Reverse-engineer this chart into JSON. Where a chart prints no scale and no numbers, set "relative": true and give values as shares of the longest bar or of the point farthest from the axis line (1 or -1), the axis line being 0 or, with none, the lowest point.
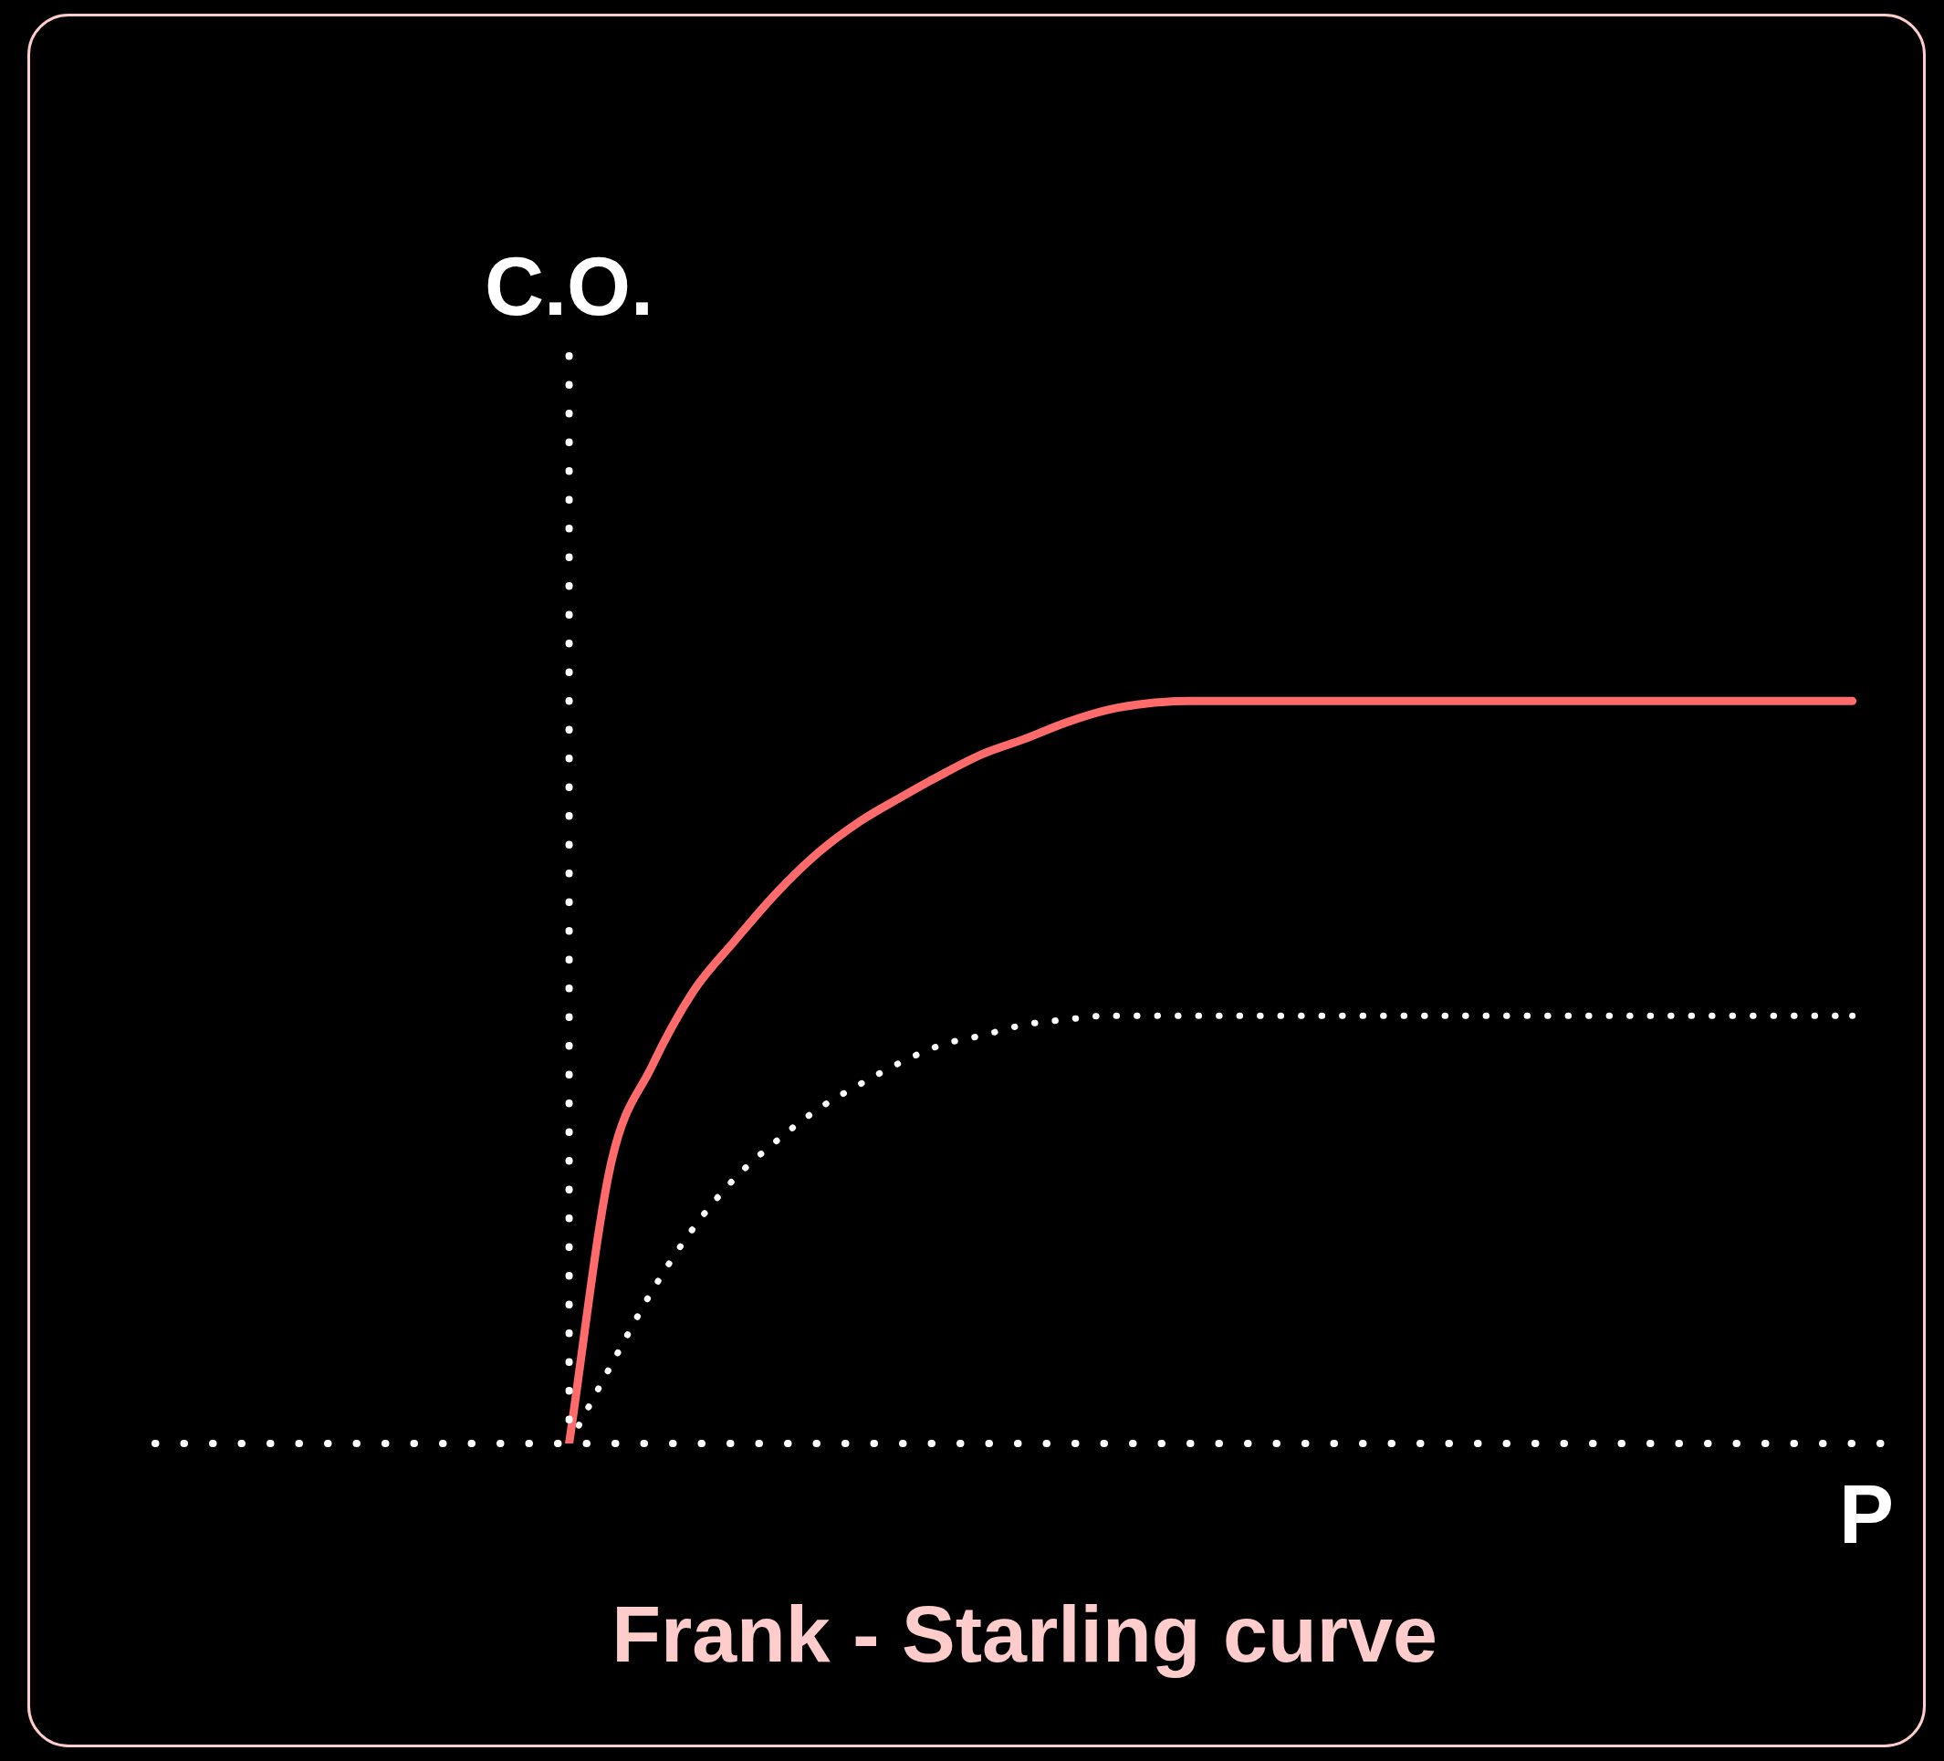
{
  "chart_data": {
    "type": "line",
    "title": "Frank - Starling curve",
    "xlabel": "P",
    "ylabel": "C.O.",
    "relative": true,
    "legend": false,
    "marker": "none",
    "categories": [
      null,
      null,
      null,
      null,
      null,
      null,
      null,
      null,
      null,
      null,
      null,
      null,
      null,
      null,
      null,
      null,
      null,
      null,
      null,
      null,
      null,
      null,
      null,
      null,
      null,
      null,
      null,
      null,
      null,
      null,
      null,
      null,
      null,
      null,
      null,
      null,
      null,
      null,
      null,
      null,
      null,
      null,
      null
    ],
    "series": [
      {
        "color": "#ff6b6b",
        "line_style": "solid",
        "values": [
          null,
          null,
          null,
          null,
          null,
          null,
          null,
          null,
          null,
          null,
          0,
          0.374,
          0.508,
          0.609,
          0.677,
          0.741,
          0.795,
          0.837,
          0.87,
          0.901,
          0.929,
          0.949,
          0.971,
          0.988,
          0.997,
          1,
          1,
          1,
          1,
          1,
          1,
          1,
          1,
          1,
          1,
          1,
          1,
          1,
          1,
          1,
          1,
          1,
          null
        ]
      },
      {
        "color": "#ffffff",
        "line_style": "dotted",
        "values": [
          null,
          null,
          null,
          null,
          null,
          null,
          null,
          null,
          null,
          null,
          0,
          0.104,
          0.205,
          0.29,
          0.357,
          0.407,
          0.45,
          0.483,
          0.513,
          0.537,
          0.55,
          0.564,
          0.571,
          0.576,
          0.576,
          0.576,
          0.576,
          0.576,
          0.576,
          0.576,
          0.576,
          0.576,
          0.576,
          0.576,
          0.576,
          0.576,
          0.576,
          0.576,
          0.576,
          0.576,
          0.576,
          0.576,
          null
        ]
      }
    ]
  }
}
